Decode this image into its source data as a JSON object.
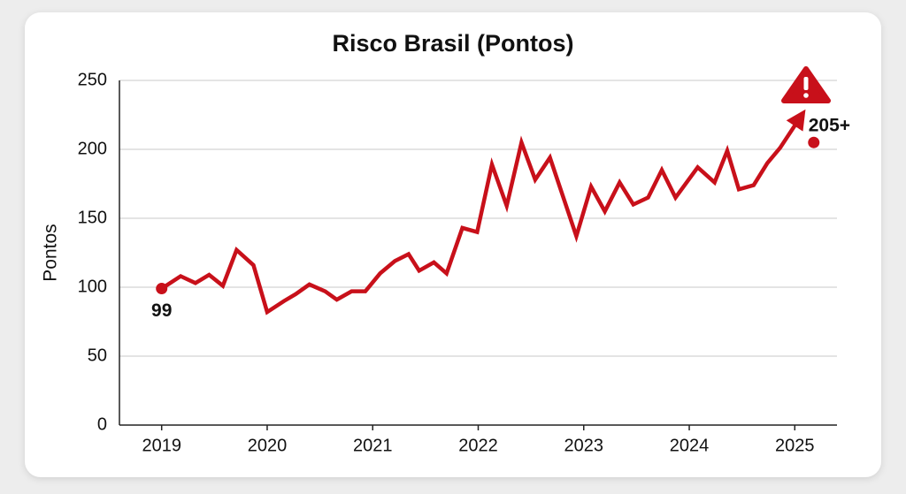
{
  "chart_data": {
    "type": "line",
    "title": "Risco Brasil (Pontos)",
    "y_label": "Pontos",
    "xlim": [
      2018.6,
      2025.4
    ],
    "ylim": [
      0,
      250
    ],
    "xticks": [
      2019,
      2020,
      2021,
      2022,
      2023,
      2024,
      2025
    ],
    "yticks": [
      0,
      50,
      100,
      150,
      200,
      250
    ],
    "grid": true,
    "series": [
      {
        "color": "#c8101a",
        "x": [
          2019.0,
          2019.18,
          2019.32,
          2019.45,
          2019.58,
          2019.71,
          2019.87,
          2020.0,
          2020.16,
          2020.27,
          2020.4,
          2020.55,
          2020.66,
          2020.8,
          2020.93,
          2021.07,
          2021.21,
          2021.34,
          2021.44,
          2021.58,
          2021.7,
          2021.85,
          2021.99,
          2022.13,
          2022.27,
          2022.41,
          2022.54,
          2022.68,
          2022.93,
          2023.07,
          2023.2,
          2023.34,
          2023.47,
          2023.61,
          2023.74,
          2023.87,
          2024.08,
          2024.24,
          2024.36,
          2024.47,
          2024.61,
          2024.74,
          2024.86,
          2025.05
        ],
        "values": [
          99,
          108,
          103,
          109,
          101,
          127,
          116,
          82,
          90,
          95,
          102,
          97,
          91,
          97,
          97,
          110,
          119,
          124,
          112,
          118,
          110,
          143,
          140,
          189,
          159,
          205,
          178,
          194,
          137,
          173,
          155,
          176,
          160,
          165,
          185,
          165,
          187,
          176,
          199,
          171,
          174,
          190,
          201,
          223
        ]
      }
    ],
    "annotations": [
      {
        "x": 2019.0,
        "y": 99,
        "label": "99"
      },
      {
        "x": 2025.18,
        "y": 205,
        "label": "205+"
      }
    ]
  }
}
